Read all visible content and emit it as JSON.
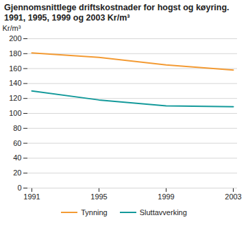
{
  "chart_data": {
    "type": "line",
    "title": "Gjennomsnittlege driftskostnader for hogst og køyring. 1991, 1995, 1999 og 2003 Kr/m³",
    "y_label": "Kr/m³",
    "categories": [
      "1991",
      "1995",
      "1999",
      "2003"
    ],
    "series": [
      {
        "name": "Tynning",
        "color": "#f39a32",
        "values": [
          181,
          175,
          165,
          158
        ]
      },
      {
        "name": "Sluttavverking",
        "color": "#12999a",
        "values": [
          130,
          118,
          110,
          109
        ]
      }
    ],
    "ylim": [
      0,
      200
    ],
    "yticks": [
      0,
      20,
      40,
      60,
      80,
      100,
      120,
      140,
      160,
      180,
      200
    ],
    "grid": true,
    "legend": "bottom"
  }
}
